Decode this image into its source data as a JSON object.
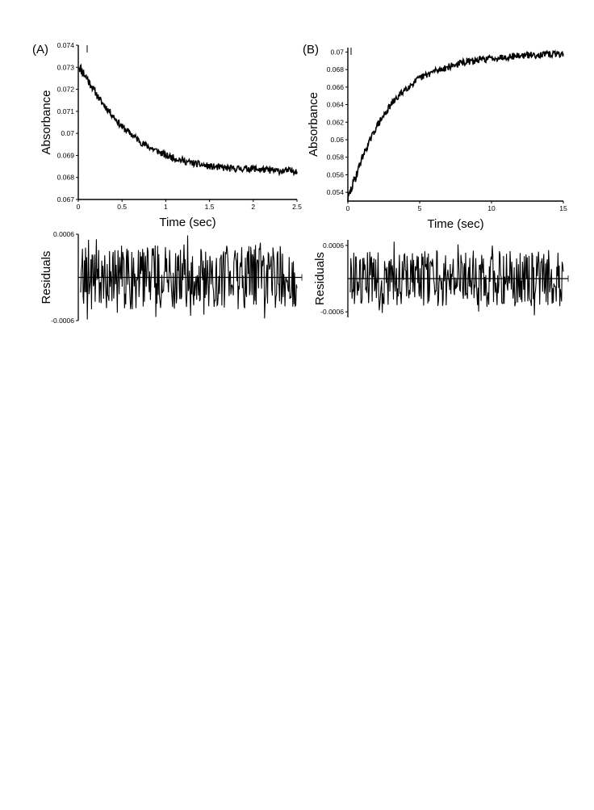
{
  "colors": {
    "ink": "#000000",
    "background": "#ffffff"
  },
  "chart_data": [
    {
      "panel": "(A)",
      "type": "line",
      "xlabel": "Time (sec)",
      "ylabel": "Absorbance",
      "xlim": [
        0,
        2.5
      ],
      "ylim": [
        0.067,
        0.074
      ],
      "xticks": [
        "0",
        "0.5",
        "1",
        "1.5",
        "2",
        "2.5"
      ],
      "yticks": [
        "0.067",
        "0.068",
        "0.069",
        "0.07",
        "0.071",
        "0.072",
        "0.073",
        "0.074"
      ],
      "grid": false,
      "series": [
        {
          "kind": "noisy-exponential-decay",
          "x": [
            0,
            0.1,
            0.25,
            0.5,
            0.75,
            1.0,
            1.25,
            1.5,
            1.75,
            2.0,
            2.25,
            2.5
          ],
          "values": [
            0.0731,
            0.0725,
            0.0715,
            0.0703,
            0.0695,
            0.069,
            0.0687,
            0.0685,
            0.0684,
            0.0684,
            0.0683,
            0.0683
          ]
        }
      ],
      "residuals": {
        "ylabel": "Residuals",
        "yticks": [
          "0.0006",
          "-0.0006"
        ],
        "ylim": [
          -0.0006,
          0.0006
        ],
        "xlim": [
          0,
          2.5
        ],
        "noise_amplitude": 0.00045
      }
    },
    {
      "panel": "(B)",
      "type": "line",
      "xlabel": "Time (sec)",
      "ylabel": "Absorbance",
      "xlim": [
        0,
        15
      ],
      "ylim": [
        0.053,
        0.0705
      ],
      "xticks": [
        "0",
        "5",
        "10",
        "15"
      ],
      "yticks": [
        "0.054",
        "0.056",
        "0.058",
        "0.06",
        "0.062",
        "0.064",
        "0.066",
        "0.068",
        "0.07"
      ],
      "grid": false,
      "series": [
        {
          "kind": "noisy-exponential-rise",
          "x": [
            0,
            1,
            2,
            3,
            4,
            5,
            6,
            8,
            10,
            12,
            15
          ],
          "values": [
            0.0532,
            0.058,
            0.0615,
            0.064,
            0.0658,
            0.067,
            0.0678,
            0.0688,
            0.0693,
            0.0696,
            0.0698
          ]
        }
      ],
      "residuals": {
        "ylabel": "Residuals",
        "yticks": [
          "0.0006",
          "-0.0006"
        ],
        "ylim": [
          -0.0007,
          0.0007
        ],
        "xlim": [
          0,
          15
        ],
        "noise_amplitude": 0.0005
      }
    }
  ]
}
